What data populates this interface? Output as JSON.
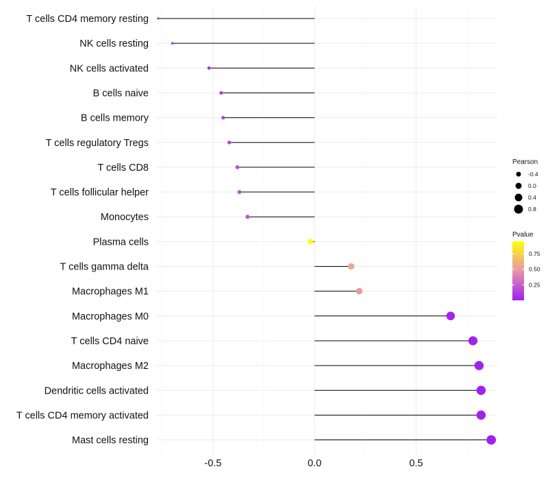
{
  "chart_data": {
    "type": "lollipop",
    "title": "",
    "xlabel": "",
    "ylabel": "",
    "xlim": [
      -0.78,
      0.9
    ],
    "x_ticks": [
      -0.5,
      0.0,
      0.5
    ],
    "x_tick_labels": [
      "-0.5",
      "0.0",
      "0.5"
    ],
    "grid": true,
    "categories": [
      "T cells CD4 memory resting",
      "NK cells resting",
      "NK cells activated",
      "B cells naive",
      "B cells memory",
      "T cells regulatory  Tregs",
      "T cells CD8",
      "T cells follicular helper",
      "Monocytes",
      "Plasma cells",
      "T cells gamma delta",
      "Macrophages M1",
      "Macrophages M0",
      "T cells CD4 naive",
      "Macrophages M2",
      "Dendritic cells activated",
      "T cells CD4 memory activated",
      "Mast cells resting"
    ],
    "pearson": [
      -0.77,
      -0.7,
      -0.52,
      -0.46,
      -0.45,
      -0.42,
      -0.38,
      -0.37,
      -0.33,
      -0.02,
      0.18,
      0.22,
      0.67,
      0.78,
      0.81,
      0.82,
      0.82,
      0.87
    ],
    "pvalue": [
      0.05,
      0.05,
      0.08,
      0.12,
      0.12,
      0.15,
      0.18,
      0.19,
      0.22,
      0.95,
      0.55,
      0.5,
      0.02,
      0.01,
      0.01,
      0.01,
      0.01,
      0.0
    ],
    "legend_size": {
      "title": "Pearson",
      "labels": [
        "-0.4",
        "0.0",
        "0.4",
        "0.8"
      ],
      "values": [
        -0.4,
        0.0,
        0.4,
        0.8
      ]
    },
    "legend_color": {
      "title": "Pvalue",
      "labels": [
        "0.75",
        "0.50",
        "0.25"
      ],
      "values": [
        0.75,
        0.5,
        0.25
      ],
      "low_color": "#a020f0",
      "high_color": "#ffff00",
      "range": [
        0.0,
        0.95
      ]
    },
    "legend_position": "right",
    "segment_color": "#000000",
    "grid_color": "#ebebeb"
  }
}
